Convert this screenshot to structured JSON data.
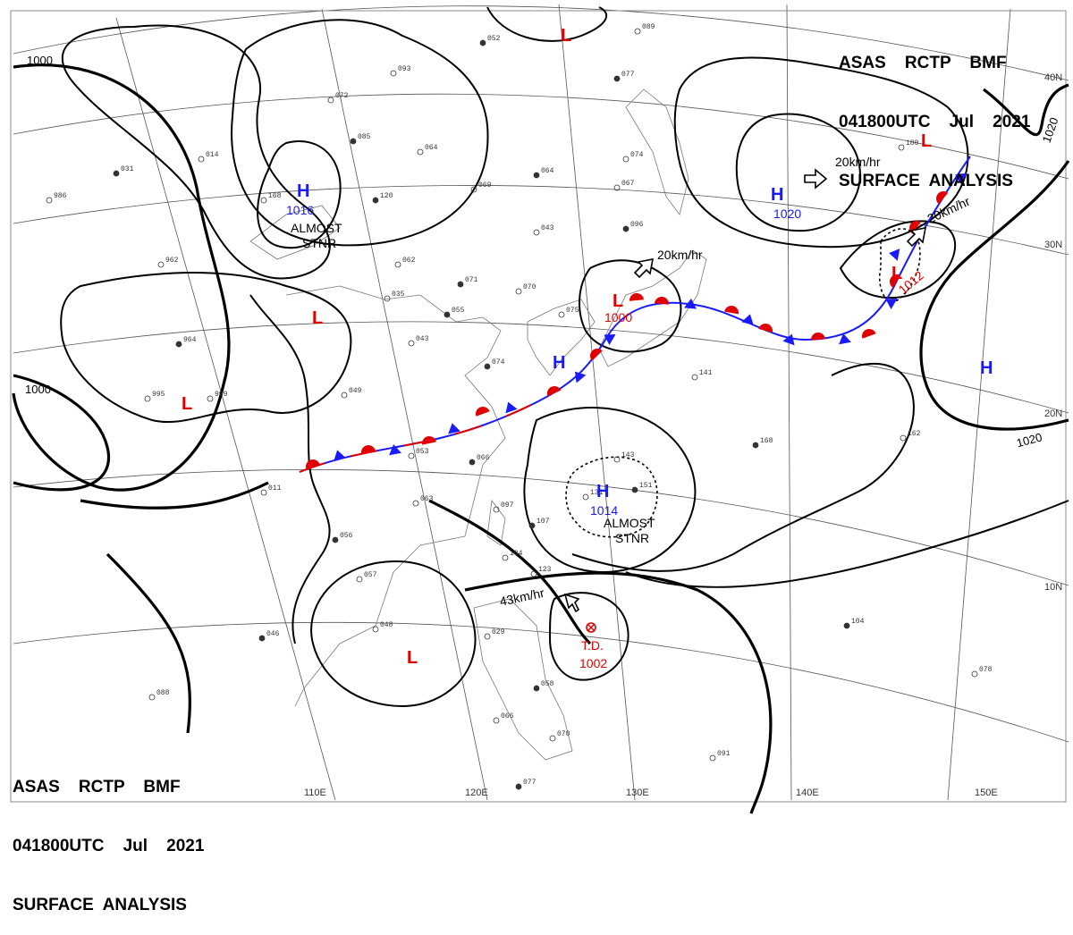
{
  "header": {
    "line1": "ASAS    RCTP    BMF",
    "line2": "041800UTC    Jul    2021",
    "line3": "SURFACE  ANALYSIS"
  },
  "axis_labels": {
    "lon": [
      "110E",
      "120E",
      "130E",
      "140E",
      "150E"
    ],
    "lat": [
      "40N",
      "30N",
      "20N",
      "10N"
    ]
  },
  "isobar_labels": [
    "1000",
    "1000",
    "1020",
    "1020"
  ],
  "pressure_centers": [
    {
      "type": "H",
      "pressure": "1016",
      "note": "ALMOST STNR",
      "color": "#1a1aff"
    },
    {
      "type": "H",
      "pressure": "1020",
      "note": "",
      "color": "#1a1aff"
    },
    {
      "type": "H",
      "pressure": "1014",
      "note": "ALMOST STNR",
      "color": "#1a1aff"
    },
    {
      "type": "H",
      "pressure": "",
      "note": "",
      "color": "#1a1aff"
    },
    {
      "type": "H",
      "pressure": "",
      "note": "",
      "color": "#1a1aff"
    },
    {
      "type": "L",
      "pressure": "",
      "note": "",
      "color": "#e00000"
    },
    {
      "type": "L",
      "pressure": "",
      "note": "",
      "color": "#e00000"
    },
    {
      "type": "L",
      "pressure": "",
      "note": "",
      "color": "#e00000"
    },
    {
      "type": "L",
      "pressure": "",
      "note": "",
      "color": "#e00000"
    },
    {
      "type": "L",
      "pressure": "1000",
      "note": "",
      "color": "#e00000"
    },
    {
      "type": "L",
      "pressure": "1012",
      "note": "",
      "color": "#e00000"
    },
    {
      "type": "L",
      "pressure": "",
      "note": "",
      "color": "#e00000"
    }
  ],
  "tropical_depression": {
    "label": "T.D.",
    "pressure": "1002",
    "color": "#e00000"
  },
  "movement_labels": [
    "20km/hr",
    "20km/hr",
    "20km/hr",
    "43km/hr"
  ],
  "front_colors": {
    "cold": "#1a1aff",
    "warm": "#e00000"
  },
  "station_values": [
    "052",
    "093",
    "072",
    "085",
    "064",
    "069",
    "064",
    "043",
    "062",
    "071",
    "070",
    "035",
    "055",
    "075",
    "043",
    "074",
    "049",
    "053",
    "066",
    "063",
    "097",
    "107",
    "104",
    "123",
    "056",
    "057",
    "048",
    "046",
    "029",
    "088",
    "058",
    "070",
    "066",
    "077",
    "091",
    "141",
    "168",
    "162",
    "078",
    "104",
    "180",
    "089",
    "077",
    "074",
    "067",
    "096",
    "999",
    "995",
    "964",
    "962",
    "986",
    "031",
    "014",
    "011",
    "120",
    "168",
    "131",
    "151",
    "143"
  ]
}
